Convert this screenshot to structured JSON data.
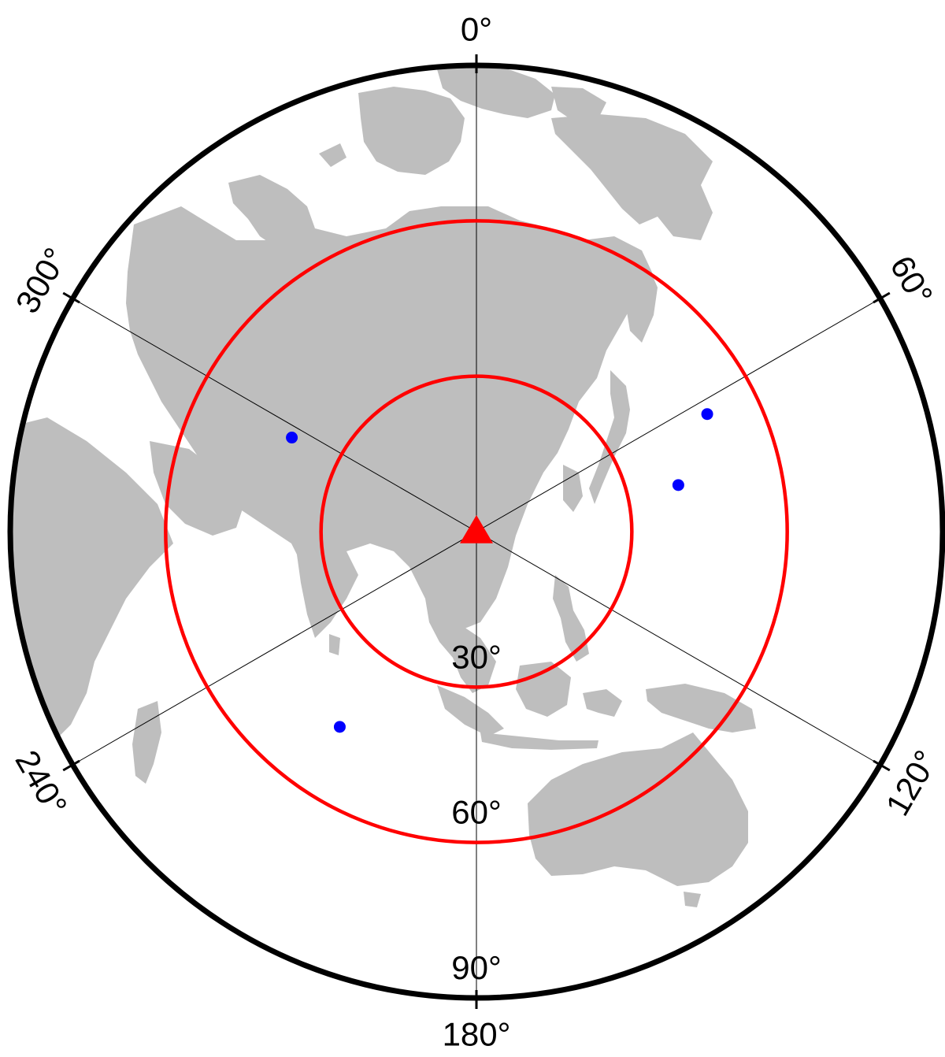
{
  "map": {
    "projection": "azimuthal-equidistant",
    "land_color": "#bebebe",
    "ring_color": "#ff0000",
    "station_color": "#ff0000",
    "event_color": "#0000ff",
    "max_distance_deg": 90,
    "azimuth_labels": [
      {
        "azimuth": 0,
        "text": "0°"
      },
      {
        "azimuth": 60,
        "text": "60°"
      },
      {
        "azimuth": 120,
        "text": "120°"
      },
      {
        "azimuth": 180,
        "text": "180°"
      },
      {
        "azimuth": 240,
        "text": "240°"
      },
      {
        "azimuth": 300,
        "text": "300°"
      }
    ],
    "distance_labels": [
      {
        "distance": 30,
        "text": "30°"
      },
      {
        "distance": 60,
        "text": "60°"
      },
      {
        "distance": 90,
        "text": "90°"
      }
    ],
    "rings_deg": [
      30,
      60
    ],
    "station": {
      "symbol": "triangle",
      "distance": 0
    },
    "events": [
      {
        "azimuth": 63,
        "distance": 50
      },
      {
        "azimuth": 77,
        "distance": 40
      },
      {
        "azimuth": 297,
        "distance": 40
      },
      {
        "azimuth": 215,
        "distance": 46
      }
    ]
  }
}
